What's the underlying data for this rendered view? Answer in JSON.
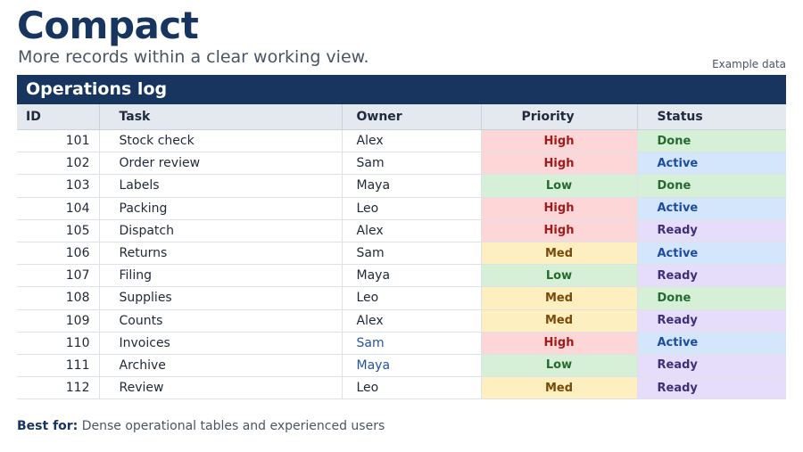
{
  "header": {
    "title": "Compact",
    "subtitle": "More records within a clear working view.",
    "example_label": "Example data"
  },
  "table": {
    "title": "Operations log",
    "columns": [
      "ID",
      "Task",
      "Owner",
      "Priority",
      "Status"
    ],
    "rows": [
      {
        "id": "101",
        "task": "Stock check",
        "owner": "Alex",
        "priority": "High",
        "status": "Done"
      },
      {
        "id": "102",
        "task": "Order review",
        "owner": "Sam",
        "priority": "High",
        "status": "Active"
      },
      {
        "id": "103",
        "task": "Labels",
        "owner": "Maya",
        "priority": "Low",
        "status": "Done"
      },
      {
        "id": "104",
        "task": "Packing",
        "owner": "Leo",
        "priority": "High",
        "status": "Active"
      },
      {
        "id": "105",
        "task": "Dispatch",
        "owner": "Alex",
        "priority": "High",
        "status": "Ready"
      },
      {
        "id": "106",
        "task": "Returns",
        "owner": "Sam",
        "priority": "Med",
        "status": "Active"
      },
      {
        "id": "107",
        "task": "Filing",
        "owner": "Maya",
        "priority": "Low",
        "status": "Ready"
      },
      {
        "id": "108",
        "task": "Supplies",
        "owner": "Leo",
        "priority": "Med",
        "status": "Done"
      },
      {
        "id": "109",
        "task": "Counts",
        "owner": "Alex",
        "priority": "Med",
        "status": "Ready"
      },
      {
        "id": "110",
        "task": "Invoices",
        "owner": "Sam",
        "priority": "High",
        "status": "Active"
      },
      {
        "id": "111",
        "task": "Archive",
        "owner": "Maya",
        "priority": "Low",
        "status": "Ready"
      },
      {
        "id": "112",
        "task": "Review",
        "owner": "Leo",
        "priority": "Med",
        "status": "Ready"
      }
    ]
  },
  "footer": {
    "label": "Best for:",
    "text": "Dense operational tables and experienced users"
  },
  "colors": {
    "brand": "#17355f",
    "high": "#fdd7d7",
    "low": "#d6f0d8",
    "med": "#fdefbf",
    "done": "#d6f0d8",
    "active": "#d4e6fb",
    "ready": "#e6ddfa"
  }
}
